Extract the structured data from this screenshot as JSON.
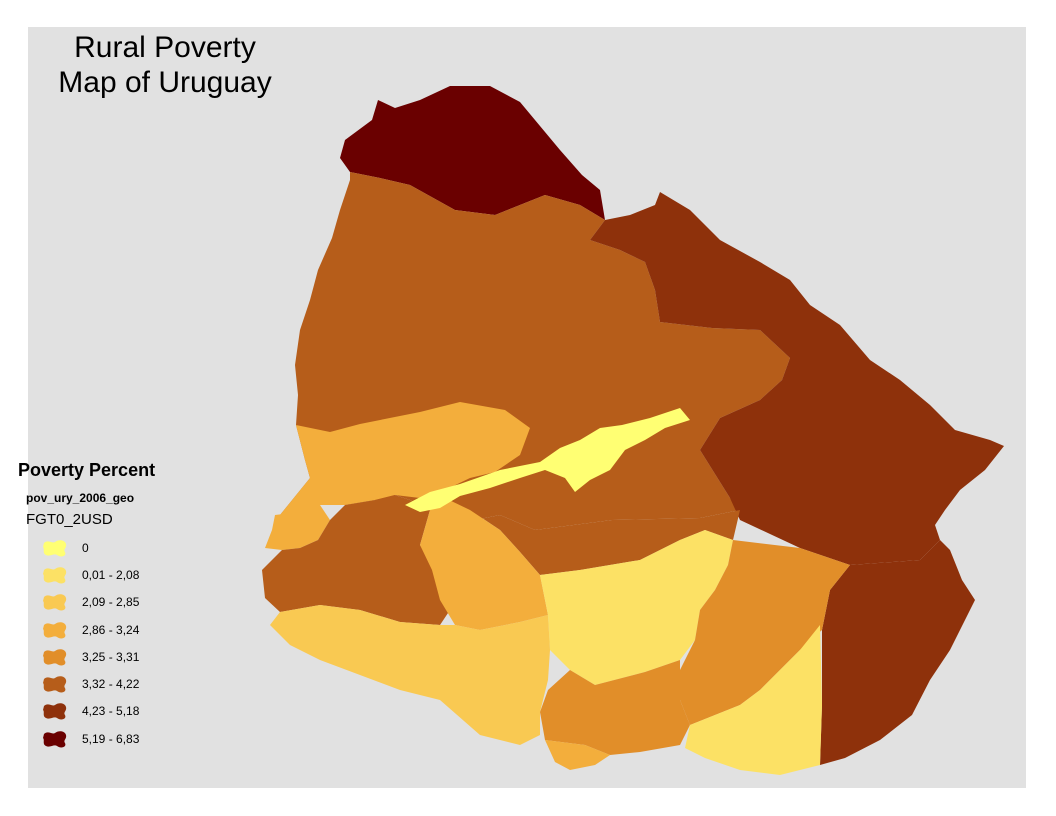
{
  "map": {
    "title_lines": [
      "Rural Poverty",
      "Map of Uruguay"
    ]
  },
  "legend": {
    "heading": "Poverty Percent",
    "layer_name": "pov_ury_2006_geo",
    "field_name": "FGT0_2USD",
    "classes": [
      {
        "label": "0",
        "color": "#ffff73"
      },
      {
        "label": "0,01 - 2,08",
        "color": "#fce165"
      },
      {
        "label": "2,09 - 2,85",
        "color": "#f9c952"
      },
      {
        "label": "2,86 - 3,24",
        "color": "#f3ae3c"
      },
      {
        "label": "3,25 - 3,31",
        "color": "#e18e29"
      },
      {
        "label": "3,32 - 4,22",
        "color": "#b65d1a"
      },
      {
        "label": "4,23 - 5,18",
        "color": "#8e310b"
      },
      {
        "label": "5,19 - 6,83",
        "color": "#6a0000"
      }
    ]
  },
  "regions": [
    {
      "name": "artigas",
      "class": "5,19 - 6,83"
    },
    {
      "name": "salto-paysandu-tacuarembo",
      "class": "3,32 - 4,22"
    },
    {
      "name": "rivera-cerro-largo",
      "class": "4,23 - 5,18"
    },
    {
      "name": "treinta-y-tres-rocha",
      "class": "4,23 - 5,18"
    },
    {
      "name": "rio-negro",
      "class": "2,86 - 3,24"
    },
    {
      "name": "durazno",
      "class": "3,32 - 4,22"
    },
    {
      "name": "soriano-west",
      "class": "2,86 - 3,24"
    },
    {
      "name": "soriano",
      "class": "3,32 - 4,22"
    },
    {
      "name": "flores",
      "class": "2,86 - 3,24"
    },
    {
      "name": "florida",
      "class": "0,01 - 2,08"
    },
    {
      "name": "lavalleja",
      "class": "3,25 - 3,31"
    },
    {
      "name": "colonia-san-jose",
      "class": "2,09 - 2,85"
    },
    {
      "name": "canelones",
      "class": "3,25 - 3,31"
    },
    {
      "name": "montevideo",
      "class": "2,86 - 3,24"
    },
    {
      "name": "maldonado",
      "class": "0,01 - 2,08"
    },
    {
      "name": "rio-negro-reservoir",
      "class": "0"
    }
  ]
}
